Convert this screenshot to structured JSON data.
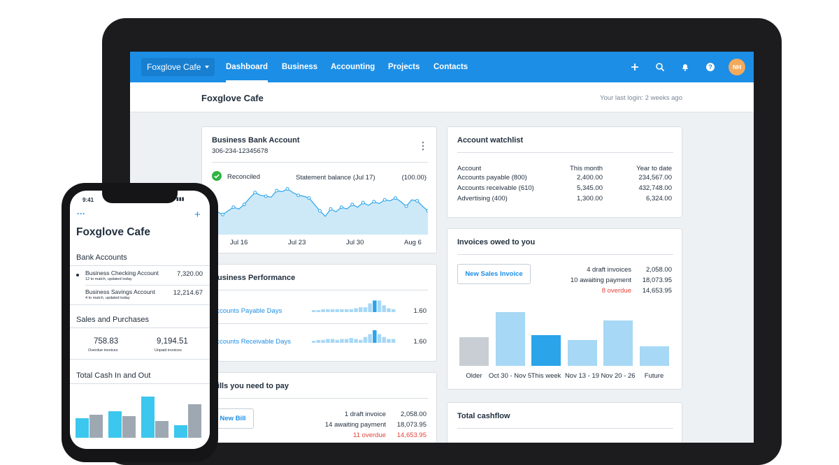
{
  "colors": {
    "brand": "#1c8ee6",
    "chart_light": "#a7d8f5",
    "chart_dark": "#2ba4ea",
    "gray_bar": "#c8ced4",
    "overdue": "#e5423a"
  },
  "nav": {
    "org": "Foxglove Cafe",
    "tabs": [
      "Dashboard",
      "Business",
      "Accounting",
      "Projects",
      "Contacts"
    ],
    "icons": [
      "plus-icon",
      "search-icon",
      "bell-icon",
      "help-icon"
    ],
    "avatar": "NH"
  },
  "header": {
    "title": "Foxglove Cafe",
    "last_login": "Your last login: 2 weeks ago"
  },
  "bank": {
    "title": "Business Bank Account",
    "number": "306-234-12345678",
    "reconciled": "Reconciled",
    "statement_label": "Statement balance (Jul 17)",
    "statement_value": "(100.00)",
    "x_labels": [
      "Jul 16",
      "Jul 23",
      "Jul 30",
      "Aug 6"
    ],
    "series": [
      30,
      25,
      22,
      26,
      30,
      28,
      33,
      40,
      46,
      43,
      42,
      41,
      48,
      47,
      50,
      46,
      43,
      42,
      40,
      33,
      26,
      20,
      28,
      25,
      30,
      28,
      33,
      30,
      35,
      32,
      36,
      34,
      38,
      37,
      40,
      36,
      31,
      38,
      37,
      31,
      26
    ]
  },
  "watchlist": {
    "title": "Account watchlist",
    "headers": [
      "Account",
      "This month",
      "Year to date"
    ],
    "rows": [
      [
        "Accounts payable (800)",
        "2,400.00",
        "234,567.00"
      ],
      [
        "Accounts receivable (610)",
        "5,345.00",
        "432,748.00"
      ],
      [
        "Advertising (400)",
        "1,300.00",
        "6,324.00"
      ]
    ]
  },
  "performance": {
    "title": "Business Performance",
    "rows": [
      {
        "label": "Accounts Payable Days",
        "value": "1.60",
        "bars": [
          2,
          2,
          3,
          3,
          3,
          3,
          3,
          3,
          3,
          4,
          5,
          5,
          9,
          12,
          12,
          7,
          4,
          3
        ]
      },
      {
        "label": "Accounts Receivable Days",
        "value": "1.60",
        "bars": [
          2,
          3,
          3,
          4,
          4,
          3,
          4,
          4,
          5,
          4,
          3,
          6,
          9,
          13,
          9,
          6,
          4,
          4
        ]
      }
    ]
  },
  "invoices": {
    "title": "Invoices owed to you",
    "button": "New Sales Invoice",
    "summary": [
      [
        "4 draft invoices",
        "2,058.00"
      ],
      [
        "10 awaiting payment",
        "18,073.95"
      ],
      [
        "8 overdue",
        "14,653.95"
      ]
    ],
    "chart_data": {
      "type": "bar",
      "categories": [
        "Older",
        "Oct 30 - Nov 5",
        "This week",
        "Nov 13 - 19",
        "Nov 20 - 26",
        "Future"
      ],
      "values": [
        47,
        88,
        50,
        42,
        74,
        32
      ]
    }
  },
  "bills": {
    "title": "Bills you need to pay",
    "button": "New Bill",
    "summary": [
      [
        "1 draft invoice",
        "2,058.00"
      ],
      [
        "14 awaiting payment",
        "18,073.95"
      ],
      [
        "11 overdue",
        "14,653.95"
      ]
    ]
  },
  "cashflow": {
    "title": "Total cashflow"
  },
  "phone": {
    "time": "9:41",
    "menu": "···",
    "plus": "+",
    "title": "Foxglove Cafe",
    "bank_heading": "Bank Accounts",
    "accounts": [
      {
        "name": "Business Checking Account",
        "sub": "12 to match, updated today",
        "value": "7,320.00"
      },
      {
        "name": "Business Savings Account",
        "sub": "4 to match, updated today",
        "value": "12,214.67"
      }
    ],
    "sales_heading": "Sales and Purchases",
    "overdue_invoices": {
      "value": "758.83",
      "label": "Overdue invoices"
    },
    "unpaid_invoices": {
      "value": "9,194.51",
      "label": "Unpaid invoices"
    },
    "cash_heading": "Total Cash In and Out",
    "cash_bars": [
      {
        "in": 28,
        "out": 33
      },
      {
        "in": 38,
        "out": 31
      },
      {
        "in": 59,
        "out": 24
      },
      {
        "in": 18,
        "out": 48
      }
    ]
  }
}
